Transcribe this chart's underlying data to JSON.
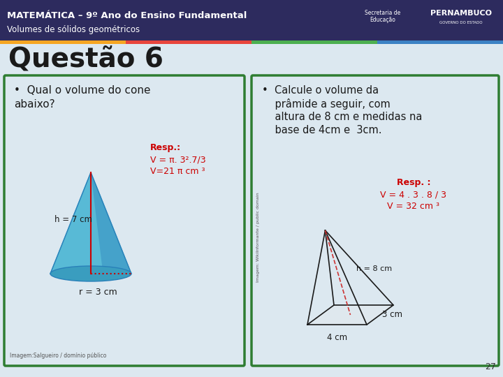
{
  "header_bg": "#2d2b5e",
  "header_text1": "MATEMÁTICA – 9º Ano do Ensino Fundamental",
  "header_text2": "Volumes de sólidos geométricos",
  "header_color": "#ffffff",
  "stripe_colors": [
    "#f5a623",
    "#e8453c",
    "#4caf50",
    "#3b82c4"
  ],
  "slide_bg": "#dce8f0",
  "title": "Questão 6",
  "title_color": "#1a1a1a",
  "box_border": "#2e7d32",
  "left_bullet": "Qual o volume do cone\nabaixo?",
  "right_bullet": "Calcule o volume da\nprâmide a seguir, com\naltura de 8 cm e medidas na\nbase de 4cm e  3cm.",
  "bullet_color": "#1a1a1a",
  "left_resp_title": "Resp.:",
  "left_resp_line1": "V = π. 3².7/3",
  "left_resp_line2": "V=21 π cm ³",
  "right_resp_title": "Resp. :",
  "right_resp_line1": "V = 4 . 3 . 8 / 3",
  "right_resp_line2": "V = 32 cm ³",
  "resp_color": "#cc0000",
  "left_cone_label_h": "h = 7 cm",
  "left_cone_label_r": "r = 3 cm",
  "right_pyr_label_h": "h = 8 cm",
  "right_pyr_label_4": "4 cm",
  "right_pyr_label_3": "3 cm",
  "image_credit_left": "Imagem:Salgueiro / domínio público",
  "image_credit_right": "Imagem: Wikilnformante / public domain",
  "page_number": "27",
  "pernambuco_text": "PERNAMBUCO",
  "governo_text": "GOVERNO DO ESTADO",
  "secretaria_text": "Secretaria de\nEducação"
}
